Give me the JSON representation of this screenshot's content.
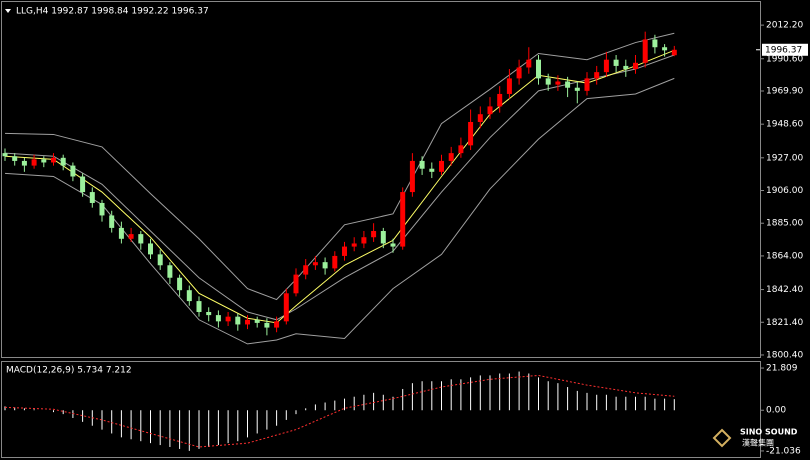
{
  "chart_data": {
    "type": "candlestick",
    "title": "LLG,H4  1992.87 1998.84 1992.22 1996.37",
    "ylim": [
      1799.1,
      2026.4
    ],
    "yticks": [
      {
        "value": 2012.2,
        "label": "2012.20"
      },
      {
        "value": 1990.6,
        "label": "1990.60"
      },
      {
        "value": 1969.9,
        "label": "1969.90"
      },
      {
        "value": 1948.6,
        "label": "1948.60"
      },
      {
        "value": 1927,
        "label": "1927.00"
      },
      {
        "value": 1906,
        "label": "1906.00"
      },
      {
        "value": 1885,
        "label": "1885.00"
      },
      {
        "value": 1864,
        "label": "1864.00"
      },
      {
        "value": 1842.4,
        "label": "1842.40"
      },
      {
        "value": 1821.4,
        "label": "1821.40"
      },
      {
        "value": 1800.4,
        "label": "1800.40"
      }
    ],
    "last_price": 1996.37,
    "up_color": "#ff0000",
    "down_color": "#9cf09c",
    "open": [
      1930,
      1928,
      1925,
      1922,
      1926,
      1924,
      1927,
      1922,
      1915,
      1905,
      1898,
      1890,
      1882,
      1875,
      1878,
      1872,
      1865,
      1858,
      1850,
      1842,
      1835,
      1828,
      1826,
      1822,
      1825,
      1820,
      1823,
      1821,
      1818,
      1822,
      1840,
      1852,
      1858,
      1860,
      1856,
      1864,
      1870,
      1872,
      1876,
      1880,
      1872,
      1870,
      1905,
      1925,
      1920,
      1918,
      1925,
      1930,
      1935,
      1950,
      1955,
      1960,
      1968,
      1978,
      1985,
      1990,
      1978,
      1974,
      1976,
      1972,
      1970,
      1978,
      1982,
      1990,
      1986,
      1984,
      1988,
      2003,
      1998,
      1992.87
    ],
    "high": [
      1933,
      1930,
      1927,
      1929,
      1928,
      1930,
      1929,
      1924,
      1917,
      1908,
      1900,
      1893,
      1886,
      1882,
      1880,
      1875,
      1868,
      1860,
      1852,
      1845,
      1838,
      1831,
      1829,
      1828,
      1827,
      1826,
      1825,
      1824,
      1825,
      1843,
      1856,
      1862,
      1864,
      1863,
      1867,
      1873,
      1876,
      1880,
      1885,
      1882,
      1875,
      1908,
      1930,
      1928,
      1924,
      1929,
      1934,
      1940,
      1958,
      1960,
      1966,
      1973,
      1984,
      1990,
      1998,
      1993,
      1981,
      1980,
      1979,
      1976,
      1982,
      1986,
      1995,
      1993,
      1990,
      1993,
      2008,
      2006,
      2000,
      1998.84
    ],
    "low": [
      1925,
      1922,
      1918,
      1920,
      1921,
      1922,
      1919,
      1912,
      1902,
      1895,
      1886,
      1879,
      1872,
      1873,
      1868,
      1862,
      1855,
      1846,
      1838,
      1832,
      1825,
      1822,
      1818,
      1819,
      1816,
      1817,
      1818,
      1813,
      1815,
      1820,
      1838,
      1849,
      1855,
      1852,
      1854,
      1861,
      1867,
      1869,
      1873,
      1869,
      1866,
      1868,
      1902,
      1916,
      1914,
      1916,
      1922,
      1927,
      1932,
      1946,
      1952,
      1956,
      1965,
      1974,
      1981,
      1974,
      1970,
      1970,
      1966,
      1962,
      1967,
      1974,
      1979,
      1982,
      1979,
      1981,
      1985,
      1994,
      1992,
      1992.22
    ],
    "close": [
      1928,
      1925,
      1922,
      1926,
      1924,
      1927,
      1922,
      1915,
      1905,
      1898,
      1890,
      1882,
      1875,
      1878,
      1872,
      1865,
      1858,
      1850,
      1842,
      1835,
      1828,
      1826,
      1822,
      1825,
      1820,
      1823,
      1821,
      1818,
      1822,
      1840,
      1852,
      1858,
      1860,
      1856,
      1864,
      1870,
      1872,
      1876,
      1880,
      1872,
      1870,
      1905,
      1925,
      1920,
      1918,
      1925,
      1930,
      1935,
      1950,
      1955,
      1960,
      1968,
      1978,
      1985,
      1990,
      1978,
      1974,
      1976,
      1972,
      1970,
      1978,
      1982,
      1990,
      1986,
      1984,
      1988,
      2003,
      1998,
      1996,
      1996.37
    ],
    "bands": {
      "x": [
        0,
        5,
        10,
        15,
        20,
        25,
        28,
        30,
        35,
        40,
        45,
        50,
        55,
        60,
        65,
        69
      ],
      "upper": [
        1942.7,
        1942,
        1934,
        1904,
        1875,
        1843,
        1836,
        1849,
        1884,
        1891,
        1949,
        1971,
        1994,
        1990,
        2001,
        2007
      ],
      "middle": [
        1930,
        1928,
        1910,
        1880,
        1850,
        1828,
        1823,
        1830,
        1850,
        1867,
        1905,
        1940,
        1970,
        1977,
        1984,
        1993
      ],
      "lower": [
        1917,
        1915,
        1897,
        1859,
        1823,
        1807.5,
        1810,
        1814,
        1811,
        1843,
        1865,
        1907,
        1939,
        1965,
        1968,
        1978
      ],
      "ma": [
        1928,
        1926,
        1905,
        1876,
        1840,
        1824,
        1821,
        1832,
        1858,
        1874,
        1915,
        1955,
        1980,
        1975,
        1986,
        1996
      ],
      "band_color": "#a0a0a0",
      "ma_color": "#ffff66"
    },
    "macd": {
      "label": "MACD(12,26,9) 5.734 7.212",
      "ylim": [
        -24.17,
        24.94
      ],
      "yticks": [
        {
          "value": 21.809,
          "label": "21.809"
        },
        {
          "value": 0,
          "label": "0.00"
        },
        {
          "value": -21.036,
          "label": "-21.036"
        }
      ],
      "histogram": [
        2,
        1.5,
        1,
        0.5,
        0,
        -1,
        -2,
        -4,
        -6,
        -8,
        -10,
        -12,
        -14,
        -15,
        -16,
        -17,
        -18,
        -19,
        -20,
        -21,
        -20,
        -19,
        -18,
        -17,
        -16,
        -14,
        -12,
        -10,
        -8,
        -5,
        -2,
        1,
        3,
        4,
        5,
        6,
        7,
        8,
        9,
        8,
        7,
        11,
        14,
        15,
        15,
        15,
        16,
        16,
        17,
        18,
        18,
        19,
        19,
        20,
        19,
        17,
        15,
        14,
        12,
        10,
        9,
        8,
        8,
        7,
        7,
        7,
        7,
        6,
        6,
        5.734
      ],
      "histogram_color": "#ffffff",
      "signal_x": [
        0,
        5,
        10,
        15,
        20,
        25,
        30,
        35,
        40,
        45,
        50,
        55,
        60,
        65,
        69
      ],
      "signal": [
        1.5,
        0.5,
        -5,
        -12,
        -19,
        -17,
        -10,
        1,
        6,
        12,
        16,
        18,
        13,
        9,
        7.212
      ],
      "signal_color": "#ff3030"
    },
    "logo": {
      "name": "SINO SOUND",
      "chinese": "漢聲集團"
    }
  }
}
